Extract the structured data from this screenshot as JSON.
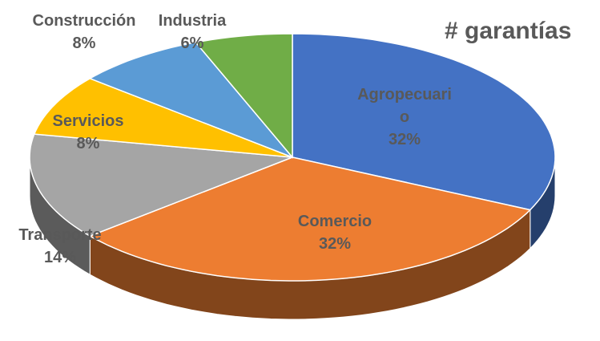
{
  "chart_data": {
    "type": "pie",
    "title": "# garantías",
    "categories": [
      "Agropecuario",
      "Comercio",
      "Transporte",
      "Servicios",
      "Construcción",
      "Industria"
    ],
    "values": [
      32,
      32,
      14,
      8,
      8,
      6
    ],
    "value_labels": [
      "32%",
      "32%",
      "14%",
      "8%",
      "8%",
      "6%"
    ],
    "colors": [
      "#4472c4",
      "#ed7d31",
      "#a5a5a5",
      "#ffc000",
      "#5b9bd5",
      "#70ad47"
    ]
  }
}
